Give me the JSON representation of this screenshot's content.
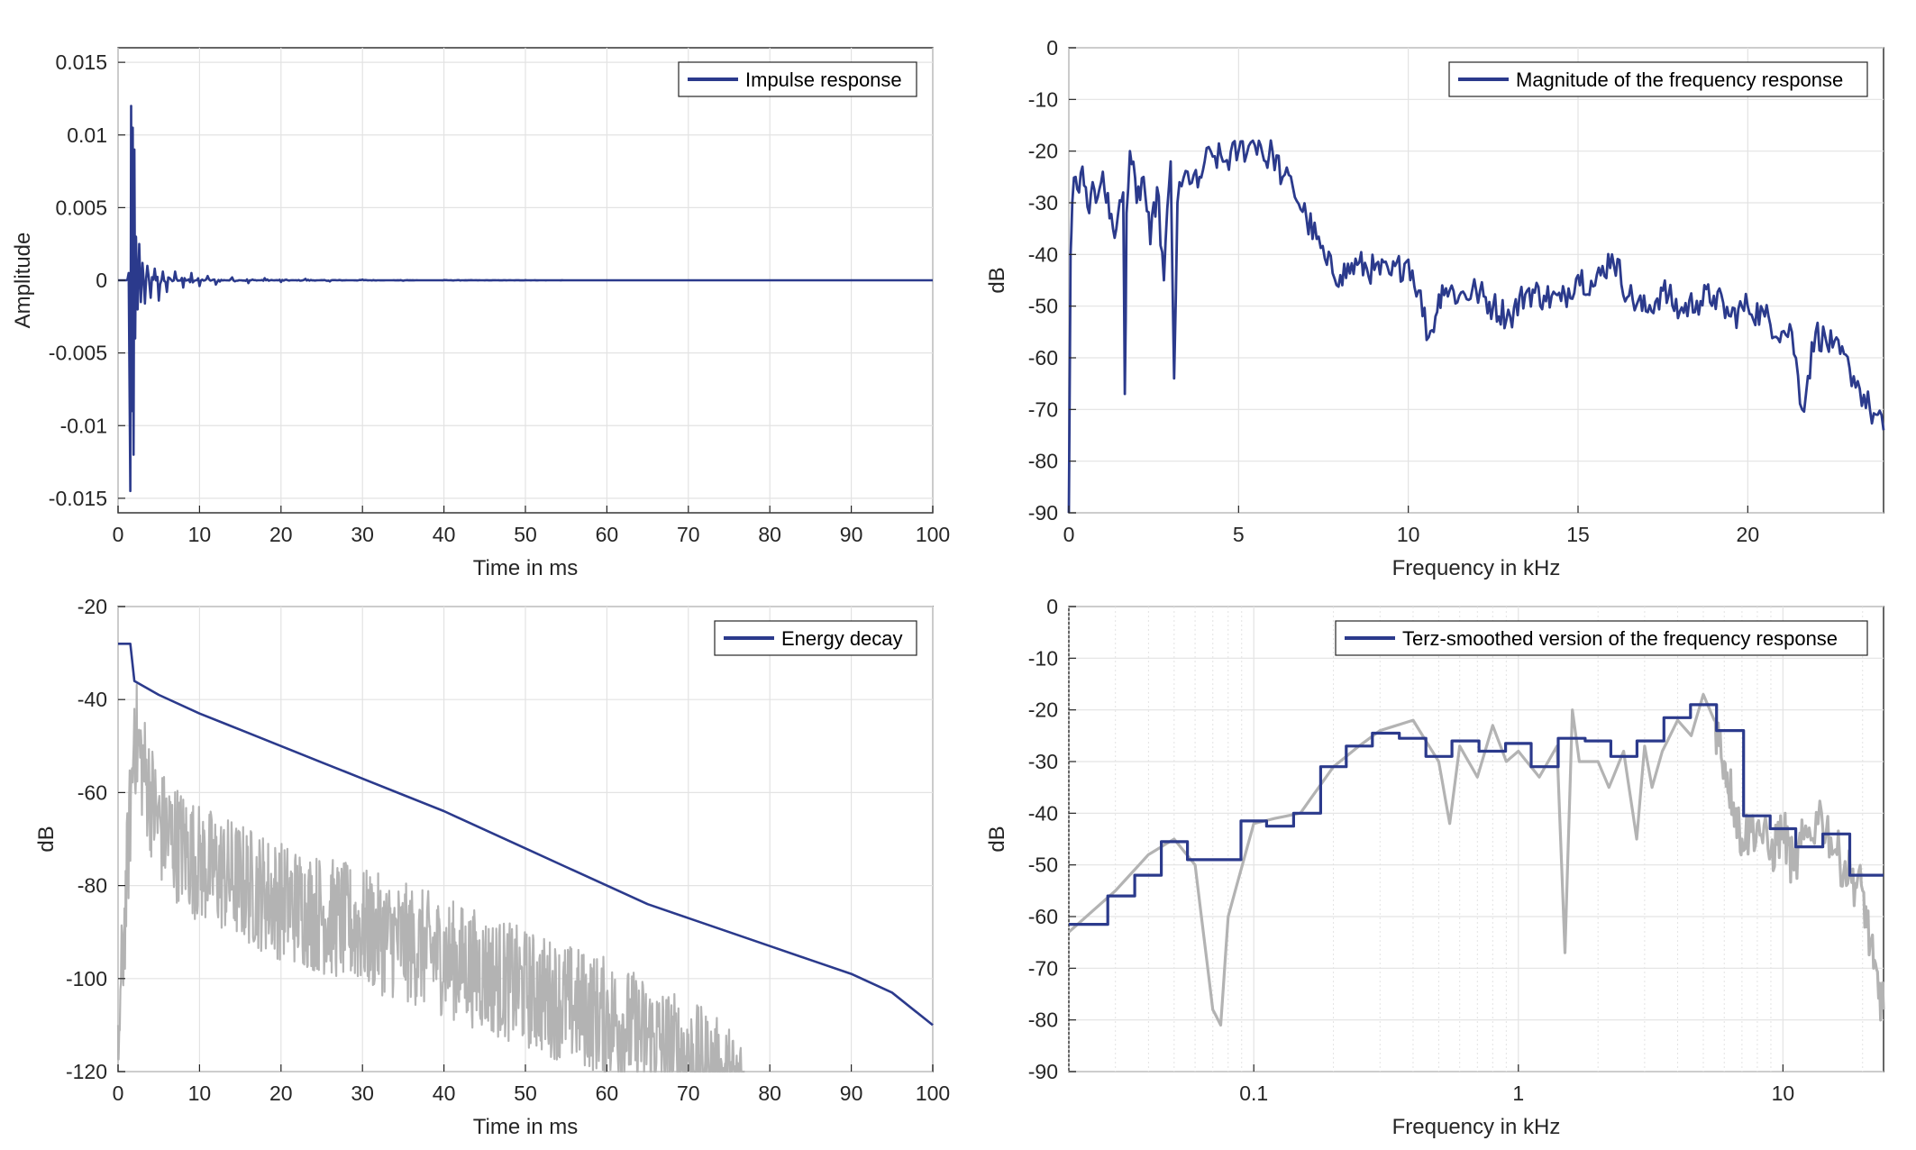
{
  "chart_data": [
    {
      "id": "impulse",
      "type": "line",
      "xlabel": "Time in ms",
      "ylabel": "Amplitude",
      "xlim": [
        0,
        100
      ],
      "ylim": [
        -0.016,
        0.016
      ],
      "xticks": [
        "0",
        "10",
        "20",
        "30",
        "40",
        "50",
        "60",
        "70",
        "80",
        "90",
        "100"
      ],
      "yticks": [
        "-0.015",
        "-0.01",
        "-0.005",
        "0",
        "0.005",
        "0.01",
        "0.015"
      ],
      "grid": true,
      "legend_position": "top-right",
      "colors": {
        "series": "#2b3a8c"
      },
      "series": [
        {
          "name": "Impulse response",
          "x": [
            0,
            1.0,
            1.3,
            1.5,
            1.6,
            1.7,
            1.8,
            1.9,
            2.0,
            2.1,
            2.2,
            2.4,
            2.6,
            2.8,
            3.0,
            3.3,
            3.6,
            4.0,
            4.5,
            5,
            5.5,
            6,
            7,
            8,
            9,
            10,
            11,
            12,
            14,
            16,
            18,
            20,
            23,
            26,
            30,
            35,
            40,
            50,
            60,
            70,
            80,
            90,
            100
          ],
          "y": [
            0,
            0,
            0.0005,
            -0.0145,
            0.012,
            -0.009,
            0.0105,
            -0.012,
            0.009,
            -0.004,
            0.003,
            -0.002,
            0.0025,
            -0.0015,
            0.0012,
            -0.0016,
            0.001,
            -0.0012,
            0.0008,
            -0.0014,
            0.0006,
            -0.0008,
            0.0006,
            -0.0005,
            0.0005,
            -0.0004,
            0.0003,
            -0.0003,
            0.0002,
            -0.0002,
            0.00015,
            -0.00012,
            0.0001,
            -8e-05,
            5e-05,
            -3e-05,
            2e-05,
            1e-05,
            0,
            0,
            0,
            0,
            0
          ]
        }
      ]
    },
    {
      "id": "magnitude",
      "type": "line",
      "xlabel": "Frequency in kHz",
      "ylabel": "dB",
      "xlim": [
        0,
        24
      ],
      "ylim": [
        -90,
        0
      ],
      "xticks": [
        "0",
        "5",
        "10",
        "15",
        "20"
      ],
      "yticks": [
        "0",
        "-10",
        "-20",
        "-30",
        "-40",
        "-50",
        "-60",
        "-70",
        "-80",
        "-90"
      ],
      "grid": true,
      "legend_position": "top-right",
      "colors": {
        "series": "#2b3a8c"
      },
      "series": [
        {
          "name": "Magnitude of the frequency response",
          "x": [
            0,
            0.05,
            0.1,
            0.2,
            0.3,
            0.4,
            0.5,
            0.6,
            0.7,
            0.8,
            1.0,
            1.2,
            1.4,
            1.6,
            1.65,
            1.7,
            1.8,
            2.0,
            2.2,
            2.4,
            2.6,
            2.8,
            3.0,
            3.1,
            3.2,
            3.5,
            3.8,
            4.0,
            4.3,
            4.6,
            5.0,
            5.3,
            5.6,
            5.8,
            6.0,
            6.3,
            6.6,
            7.0,
            7.3,
            7.6,
            8.0,
            8.5,
            9.0,
            9.5,
            10.0,
            10.3,
            10.6,
            10.8,
            11.0,
            11.5,
            12.0,
            12.5,
            13.0,
            13.5,
            14.0,
            14.5,
            15.0,
            15.5,
            16.0,
            16.5,
            17.0,
            17.5,
            18.0,
            18.5,
            19.0,
            19.5,
            20.0,
            20.5,
            21.0,
            21.3,
            21.6,
            22.0,
            22.5,
            23.0,
            23.3,
            23.6,
            24.0
          ],
          "y": [
            -90,
            -40,
            -30,
            -25,
            -28,
            -23,
            -27,
            -32,
            -26,
            -30,
            -24,
            -33,
            -35,
            -28,
            -67,
            -32,
            -20,
            -30,
            -25,
            -38,
            -27,
            -45,
            -22,
            -64,
            -30,
            -24,
            -27,
            -22,
            -21,
            -22,
            -20,
            -19,
            -18,
            -22,
            -20,
            -25,
            -27,
            -33,
            -37,
            -42,
            -44,
            -42,
            -43,
            -44,
            -41,
            -47,
            -56,
            -52,
            -46,
            -48,
            -47,
            -50,
            -52,
            -47,
            -48,
            -49,
            -44,
            -46,
            -40,
            -48,
            -51,
            -47,
            -51,
            -49,
            -48,
            -52,
            -50,
            -52,
            -55,
            -55,
            -70,
            -55,
            -58,
            -62,
            -66,
            -70,
            -74
          ]
        }
      ]
    },
    {
      "id": "decay",
      "type": "line",
      "xlabel": "Time in ms",
      "ylabel": "dB",
      "xlim": [
        0,
        100
      ],
      "ylim": [
        -120,
        -20
      ],
      "xticks": [
        "0",
        "10",
        "20",
        "30",
        "40",
        "50",
        "60",
        "70",
        "80",
        "90",
        "100"
      ],
      "yticks": [
        "-20",
        "-40",
        "-60",
        "-80",
        "-100",
        "-120"
      ],
      "grid": true,
      "legend_position": "top-right",
      "colors": {
        "series": "#2b3a8c",
        "background_trace": "#b3b3b3"
      },
      "series": [
        {
          "name": "Energy decay",
          "x": [
            0,
            1.5,
            2.0,
            5,
            10,
            15,
            20,
            25,
            30,
            35,
            40,
            45,
            50,
            55,
            60,
            65,
            70,
            75,
            80,
            85,
            90,
            95,
            100
          ],
          "y": [
            -28,
            -28,
            -36,
            -39,
            -43,
            -46.5,
            -50,
            -53.5,
            -57,
            -60.5,
            -64,
            -68,
            -72,
            -76,
            -80,
            -84,
            -87,
            -90,
            -93,
            -96,
            -99,
            -103,
            -110
          ]
        },
        {
          "name": "",
          "x": [
            0,
            2,
            5,
            10,
            20,
            30,
            40,
            50,
            60,
            70,
            77
          ],
          "y": [
            -110,
            -42,
            -62,
            -70,
            -78,
            -84,
            -90,
            -97,
            -103,
            -112,
            -120
          ]
        }
      ]
    },
    {
      "id": "terz",
      "type": "line",
      "xlabel": "Frequency in kHz",
      "ylabel": "dB",
      "xscale": "log",
      "xlim": [
        0.02,
        24
      ],
      "ylim": [
        -90,
        0
      ],
      "xticks": [
        "0.1",
        "1",
        "10"
      ],
      "yticks": [
        "0",
        "-10",
        "-20",
        "-30",
        "-40",
        "-50",
        "-60",
        "-70",
        "-80",
        "-90"
      ],
      "grid": true,
      "legend_position": "top-right",
      "colors": {
        "series": "#2b3a8c",
        "background_trace": "#b3b3b3"
      },
      "series": [
        {
          "name": "Terz-smoothed version of the frequency response",
          "bands_khz": [
            0.02,
            0.025,
            0.0315,
            0.04,
            0.05,
            0.063,
            0.08,
            0.1,
            0.125,
            0.16,
            0.2,
            0.25,
            0.315,
            0.4,
            0.5,
            0.63,
            0.8,
            1.0,
            1.25,
            1.6,
            2.0,
            2.5,
            3.15,
            4.0,
            5.0,
            6.3,
            8.0,
            10.0,
            12.5,
            16.0,
            20.0
          ],
          "levels_db": [
            -61.5,
            -61.5,
            -56,
            -52,
            -45.5,
            -49,
            -49,
            -41.5,
            -42.5,
            -40,
            -31,
            -27,
            -24.5,
            -25.5,
            -29,
            -26,
            -28,
            -26.5,
            -31,
            -25.5,
            -26,
            -29,
            -26,
            -21.5,
            -19,
            -24,
            -40.5,
            -43,
            -46.5,
            -44,
            -52
          ]
        },
        {
          "name": "",
          "x": [
            0.02,
            0.03,
            0.04,
            0.05,
            0.06,
            0.07,
            0.075,
            0.08,
            0.1,
            0.12,
            0.15,
            0.2,
            0.25,
            0.3,
            0.4,
            0.5,
            0.55,
            0.6,
            0.7,
            0.8,
            0.9,
            1.0,
            1.2,
            1.4,
            1.5,
            1.6,
            1.7,
            2.0,
            2.2,
            2.5,
            2.8,
            3.0,
            3.2,
            3.5,
            4.0,
            4.5,
            5.0,
            5.5,
            6.0,
            6.5,
            7.0,
            8.0,
            9.0,
            10.0,
            11.0,
            12.0,
            14.0,
            16.0,
            18.0,
            20.0,
            22.0,
            24.0
          ],
          "y": [
            -63,
            -55,
            -48,
            -45,
            -50,
            -78,
            -81,
            -60,
            -42,
            -41,
            -40,
            -31,
            -27,
            -24,
            -22,
            -30,
            -42,
            -27,
            -33,
            -23,
            -30,
            -28,
            -33,
            -27,
            -67,
            -20,
            -30,
            -30,
            -35,
            -28,
            -45,
            -27,
            -35,
            -28,
            -22,
            -25,
            -17,
            -22,
            -30,
            -38,
            -45,
            -42,
            -48,
            -43,
            -51,
            -45,
            -40,
            -48,
            -52,
            -55,
            -70,
            -78
          ]
        }
      ]
    }
  ]
}
